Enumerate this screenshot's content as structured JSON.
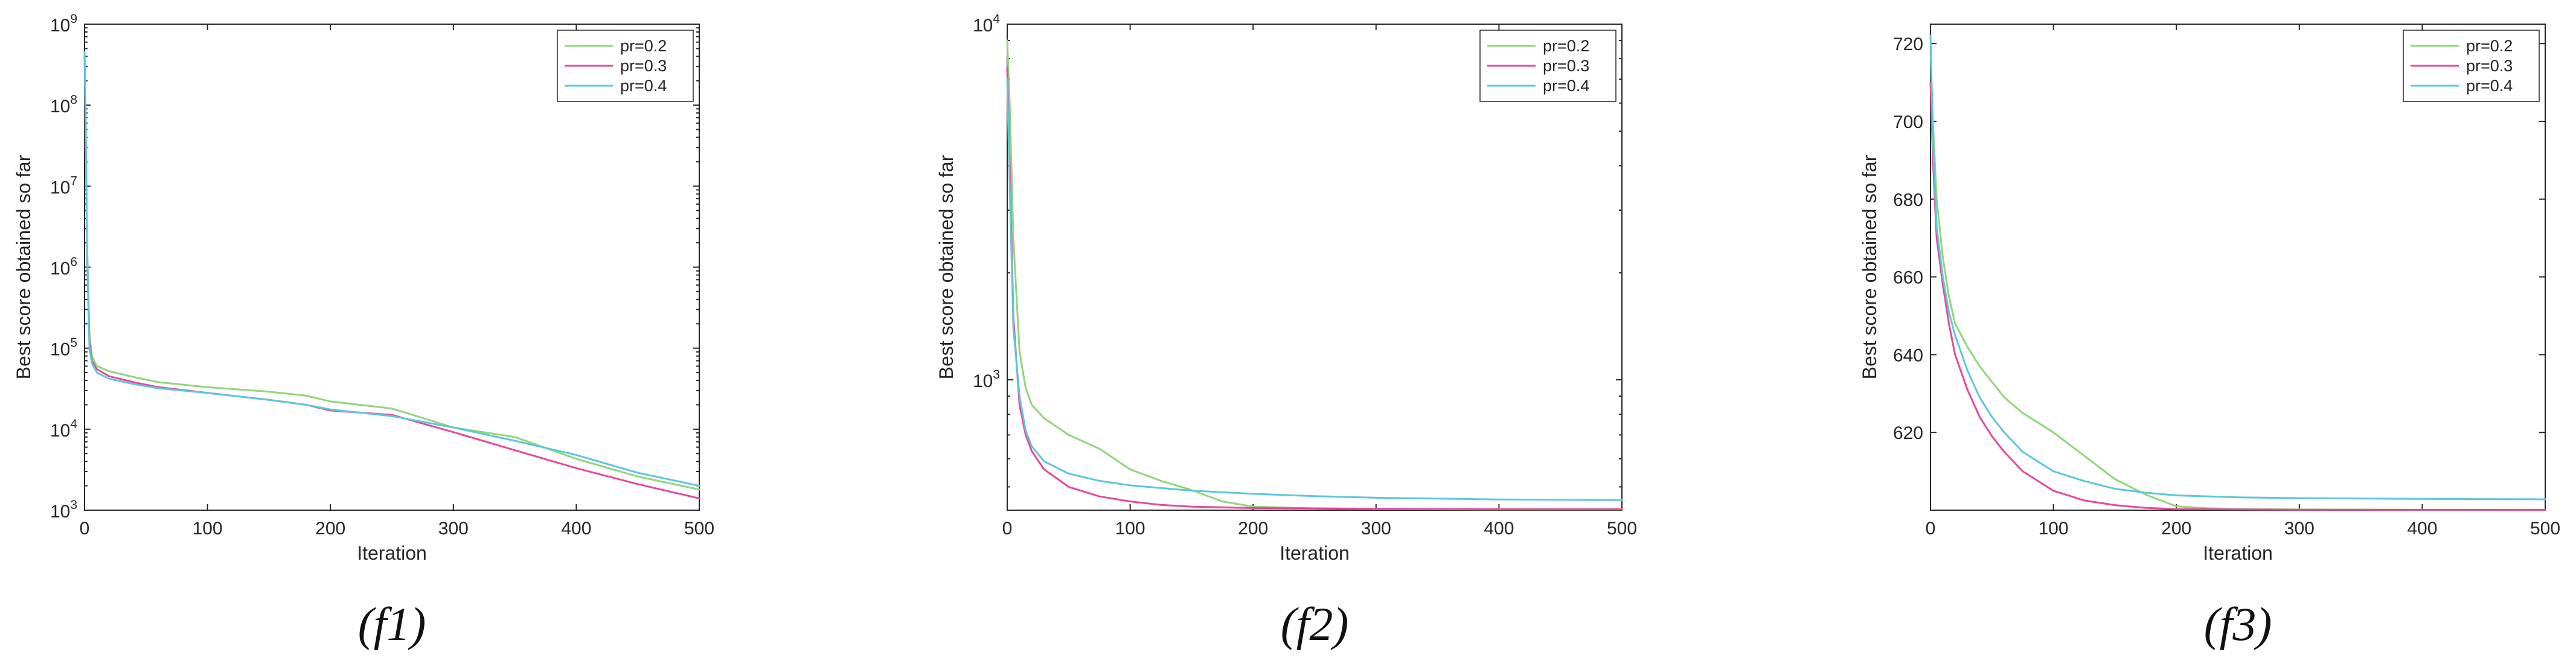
{
  "chart_data": [
    {
      "type": "line",
      "caption": "(f1)",
      "xlabel": "Iteration",
      "ylabel": "Best score obtained so far",
      "xlim": [
        0,
        500
      ],
      "ylim": [
        1000,
        1000000000
      ],
      "yscale": "log",
      "xticks": [
        0,
        100,
        200,
        300,
        400,
        500
      ],
      "yticks": [
        {
          "value": 1000,
          "base": "10",
          "exp": "3"
        },
        {
          "value": 10000,
          "base": "10",
          "exp": "4"
        },
        {
          "value": 100000,
          "base": "10",
          "exp": "5"
        },
        {
          "value": 1000000,
          "base": "10",
          "exp": "6"
        },
        {
          "value": 10000000,
          "base": "10",
          "exp": "7"
        },
        {
          "value": 100000000,
          "base": "10",
          "exp": "8"
        },
        {
          "value": 1000000000,
          "base": "10",
          "exp": "9"
        }
      ],
      "legend_position": "top-right",
      "series": [
        {
          "name": "pr=0.2",
          "color": "#90d67a",
          "x": [
            0,
            1,
            2,
            4,
            6,
            10,
            20,
            40,
            60,
            100,
            150,
            180,
            200,
            250,
            300,
            350,
            400,
            450,
            500
          ],
          "y": [
            450000000,
            60000000,
            2000000,
            150000,
            80000,
            60000,
            52000,
            44000,
            38000,
            33000,
            29000,
            26000,
            22000,
            18000,
            10500,
            8000,
            4300,
            2600,
            1800
          ]
        },
        {
          "name": "pr=0.3",
          "color": "#e8489a",
          "x": [
            0,
            1,
            2,
            4,
            6,
            10,
            20,
            40,
            60,
            100,
            150,
            180,
            200,
            250,
            300,
            350,
            400,
            450,
            500
          ],
          "y": [
            450000000,
            40000000,
            1500000,
            120000,
            70000,
            55000,
            45000,
            38000,
            33000,
            28000,
            23000,
            20000,
            17000,
            15000,
            9200,
            5500,
            3300,
            2100,
            1400
          ]
        },
        {
          "name": "pr=0.4",
          "color": "#5cc7dd",
          "x": [
            0,
            1,
            2,
            4,
            6,
            10,
            20,
            40,
            60,
            100,
            150,
            180,
            200,
            250,
            300,
            350,
            400,
            450,
            500
          ],
          "y": [
            450000000,
            50000000,
            1800000,
            100000,
            65000,
            50000,
            42000,
            36000,
            32000,
            28000,
            23000,
            20000,
            17500,
            14500,
            10500,
            7200,
            4800,
            2900,
            2000
          ]
        }
      ]
    },
    {
      "type": "line",
      "caption": "(f2)",
      "xlabel": "Iteration",
      "ylabel": "Best score obtained so far",
      "xlim": [
        0,
        500
      ],
      "ylim": [
        430,
        10000
      ],
      "yscale": "log",
      "xticks": [
        0,
        100,
        200,
        300,
        400,
        500
      ],
      "yticks": [
        {
          "value": 1000,
          "base": "10",
          "exp": "3"
        },
        {
          "value": 10000,
          "base": "10",
          "exp": "4"
        }
      ],
      "legend_position": "top-right",
      "series": [
        {
          "name": "pr=0.2",
          "color": "#90d67a",
          "x": [
            0,
            2,
            5,
            10,
            15,
            20,
            30,
            50,
            75,
            100,
            125,
            150,
            175,
            200,
            250,
            300,
            400,
            500
          ],
          "y": [
            9000,
            6000,
            2500,
            1200,
            950,
            850,
            780,
            700,
            640,
            560,
            520,
            490,
            455,
            440,
            435,
            433,
            432,
            432
          ]
        },
        {
          "name": "pr=0.3",
          "color": "#e8489a",
          "x": [
            0,
            2,
            5,
            10,
            15,
            20,
            30,
            50,
            75,
            100,
            125,
            150,
            200,
            250,
            300,
            400,
            500
          ],
          "y": [
            7500,
            4000,
            1500,
            850,
            700,
            630,
            560,
            500,
            470,
            455,
            445,
            440,
            436,
            435,
            434,
            433,
            433
          ]
        },
        {
          "name": "pr=0.4",
          "color": "#5cc7dd",
          "x": [
            0,
            2,
            5,
            10,
            15,
            20,
            30,
            50,
            75,
            100,
            150,
            200,
            250,
            300,
            400,
            500
          ],
          "y": [
            7000,
            3500,
            1400,
            900,
            720,
            650,
            590,
            545,
            520,
            505,
            488,
            478,
            471,
            466,
            461,
            459
          ]
        }
      ]
    },
    {
      "type": "line",
      "caption": "(f3)",
      "xlabel": "Iteration",
      "ylabel": "Best score obtained so far",
      "xlim": [
        0,
        500
      ],
      "ylim": [
        600,
        725
      ],
      "yscale": "linear",
      "xticks": [
        0,
        100,
        200,
        300,
        400,
        500
      ],
      "yticks": [
        {
          "value": 620,
          "label": "620"
        },
        {
          "value": 640,
          "label": "640"
        },
        {
          "value": 660,
          "label": "660"
        },
        {
          "value": 680,
          "label": "680"
        },
        {
          "value": 700,
          "label": "700"
        },
        {
          "value": 720,
          "label": "720"
        }
      ],
      "legend_position": "top-right",
      "series": [
        {
          "name": "pr=0.2",
          "color": "#90d67a",
          "x": [
            0,
            2,
            5,
            10,
            15,
            20,
            30,
            40,
            50,
            60,
            75,
            100,
            125,
            150,
            175,
            200,
            225,
            250,
            300,
            400,
            500
          ],
          "y": [
            718,
            700,
            680,
            665,
            655,
            648,
            642,
            637,
            633,
            629,
            625,
            620,
            614,
            608,
            604,
            601,
            600.5,
            600.3,
            600.2,
            600.1,
            600.1
          ]
        },
        {
          "name": "pr=0.3",
          "color": "#e8489a",
          "x": [
            0,
            2,
            5,
            10,
            15,
            20,
            30,
            40,
            50,
            60,
            75,
            100,
            125,
            150,
            175,
            200,
            250,
            300,
            400,
            500
          ],
          "y": [
            710,
            690,
            670,
            658,
            648,
            640,
            631,
            624,
            619,
            615,
            610,
            605,
            602.5,
            601.3,
            600.6,
            600.3,
            600.2,
            600.1,
            600.1,
            600.1
          ]
        },
        {
          "name": "pr=0.4",
          "color": "#5cc7dd",
          "x": [
            0,
            2,
            5,
            10,
            15,
            20,
            30,
            40,
            50,
            60,
            75,
            100,
            125,
            150,
            175,
            200,
            250,
            300,
            400,
            500
          ],
          "y": [
            722,
            695,
            673,
            660,
            651,
            645,
            636,
            629,
            624,
            620,
            615,
            610,
            607.5,
            605.5,
            604.5,
            603.8,
            603.3,
            603.1,
            602.9,
            602.8
          ]
        }
      ]
    }
  ]
}
